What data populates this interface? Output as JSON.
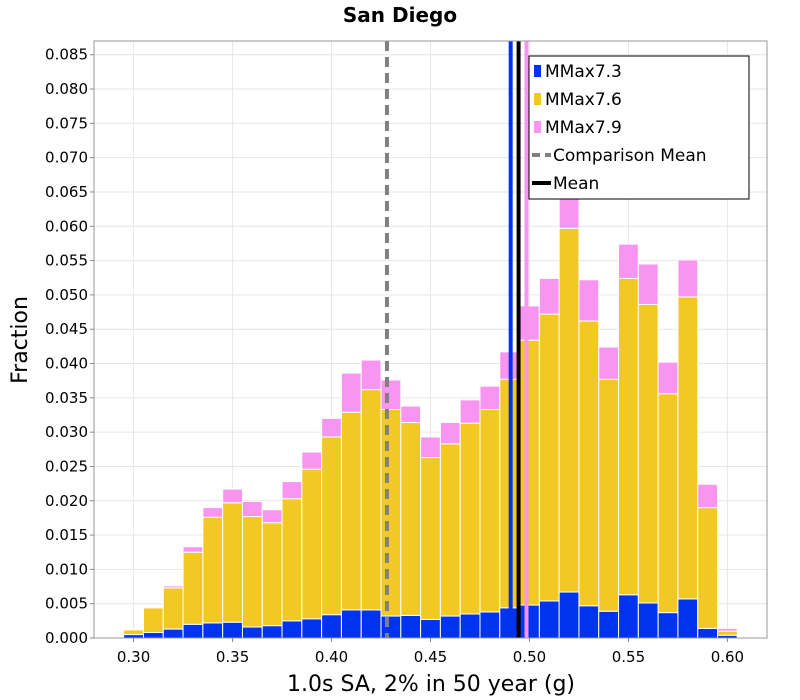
{
  "chart_data": {
    "type": "bar",
    "stacked": true,
    "title": "San Diego",
    "xlabel": "1.0s SA, 2% in 50 year (g)",
    "ylabel": "Fraction",
    "xlim": [
      0.28,
      0.62
    ],
    "ylim": [
      0,
      0.087
    ],
    "bin_width": 0.01,
    "x_ticks": [
      "0.30",
      "0.35",
      "0.40",
      "0.45",
      "0.50",
      "0.55",
      "0.60"
    ],
    "y_ticks": [
      "0.000",
      "0.005",
      "0.010",
      "0.015",
      "0.020",
      "0.025",
      "0.030",
      "0.035",
      "0.040",
      "0.045",
      "0.050",
      "0.055",
      "0.060",
      "0.065",
      "0.070",
      "0.075",
      "0.080",
      "0.085"
    ],
    "x": [
      0.29,
      0.3,
      0.31,
      0.32,
      0.33,
      0.34,
      0.35,
      0.36,
      0.37,
      0.38,
      0.39,
      0.4,
      0.41,
      0.42,
      0.43,
      0.44,
      0.45,
      0.46,
      0.47,
      0.48,
      0.49,
      0.5,
      0.51,
      0.52,
      0.53,
      0.54,
      0.55,
      0.56,
      0.57,
      0.58,
      0.59,
      0.6,
      0.61
    ],
    "series": [
      {
        "name": "MMax7.3",
        "color": "#0033ee",
        "values": [
          0.0001,
          0.0005,
          0.0008,
          0.0013,
          0.002,
          0.0022,
          0.0023,
          0.0016,
          0.0018,
          0.0025,
          0.0028,
          0.0034,
          0.0041,
          0.0041,
          0.0032,
          0.0033,
          0.0027,
          0.0032,
          0.0035,
          0.0038,
          0.0044,
          0.0048,
          0.0054,
          0.0067,
          0.0047,
          0.0039,
          0.0063,
          0.0051,
          0.0037,
          0.0057,
          0.0014,
          0.0004,
          0.0001
        ]
      },
      {
        "name": "MMax7.6",
        "color": "#f2c824",
        "values": [
          0.0001,
          0.0007,
          0.0036,
          0.006,
          0.0105,
          0.0154,
          0.0174,
          0.0161,
          0.015,
          0.0178,
          0.0218,
          0.0259,
          0.0288,
          0.0321,
          0.0301,
          0.0281,
          0.0236,
          0.0251,
          0.0278,
          0.0295,
          0.0333,
          0.0386,
          0.0418,
          0.053,
          0.0415,
          0.0338,
          0.0461,
          0.0435,
          0.0319,
          0.044,
          0.0176,
          0.0006,
          0.0001
        ]
      },
      {
        "name": "MMax7.9",
        "color": "#f895f0",
        "values": [
          0.0,
          0.0001,
          0.0001,
          0.0003,
          0.0008,
          0.0014,
          0.002,
          0.0022,
          0.0019,
          0.0025,
          0.0025,
          0.0027,
          0.0057,
          0.0043,
          0.0043,
          0.0024,
          0.003,
          0.0031,
          0.0034,
          0.0034,
          0.004,
          0.005,
          0.0052,
          0.0062,
          0.006,
          0.0047,
          0.005,
          0.0059,
          0.0046,
          0.0054,
          0.0034,
          0.0004,
          0.0001
        ]
      }
    ],
    "vertical_lines": [
      {
        "name": "Comparison Mean",
        "x": 0.428,
        "color": "#808080",
        "style": "dashed"
      },
      {
        "name": "MMax7.3 mean",
        "x": 0.4905,
        "color": "#0033ee",
        "style": "solid"
      },
      {
        "name": "Mean",
        "x": 0.4945,
        "color": "#000000",
        "style": "solid"
      },
      {
        "name": "MMax7.9 mean",
        "x": 0.4985,
        "color": "#f895f0",
        "style": "solid"
      }
    ],
    "legend": {
      "position": "top-right",
      "entries": [
        {
          "label": "MMax7.3",
          "kind": "box",
          "color": "#0033ee"
        },
        {
          "label": "MMax7.6",
          "kind": "box",
          "color": "#f2c824"
        },
        {
          "label": "MMax7.9",
          "kind": "box",
          "color": "#f895f0"
        },
        {
          "label": "Comparison Mean",
          "kind": "dashed",
          "color": "#808080"
        },
        {
          "label": "Mean",
          "kind": "line",
          "color": "#000000"
        }
      ]
    },
    "grid": true
  }
}
